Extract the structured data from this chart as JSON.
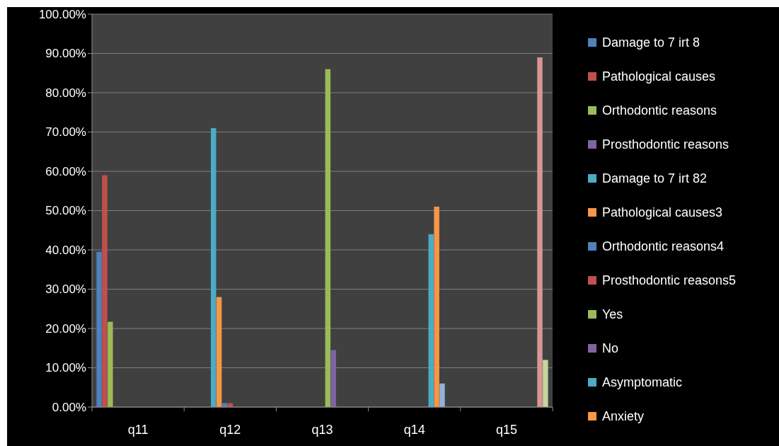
{
  "chart_data": {
    "type": "bar",
    "categories": [
      "q11",
      "q12",
      "q13",
      "q14",
      "q15"
    ],
    "ylim": [
      0,
      100
    ],
    "yticks": [
      {
        "value": 0,
        "label": "0.00%"
      },
      {
        "value": 10,
        "label": "10.00%"
      },
      {
        "value": 20,
        "label": "20.00%"
      },
      {
        "value": 30,
        "label": "30.00%"
      },
      {
        "value": 40,
        "label": "40.00%"
      },
      {
        "value": 50,
        "label": "50.00%"
      },
      {
        "value": 60,
        "label": "60.00%"
      },
      {
        "value": 70,
        "label": "70.00%"
      },
      {
        "value": 80,
        "label": "80.00%"
      },
      {
        "value": 90,
        "label": "90.00%"
      },
      {
        "value": 100,
        "label": "100.00%"
      }
    ],
    "grid": "y",
    "legend": "right",
    "series": [
      {
        "name": "Damage to 7 irt 8",
        "color": "#4f81bd",
        "values": [
          39.5,
          null,
          null,
          null,
          null
        ]
      },
      {
        "name": "Pathological causes",
        "color": "#c0504d",
        "values": [
          59,
          null,
          null,
          null,
          null
        ]
      },
      {
        "name": "Orthodontic reasons",
        "color": "#9bbb59",
        "values": [
          21.7,
          null,
          null,
          null,
          null
        ]
      },
      {
        "name": "Prosthodontic reasons",
        "color": "#8064a2",
        "values": [
          null,
          null,
          null,
          null,
          null
        ]
      },
      {
        "name": "Damage to 7 irt 82",
        "color": "#4bacc6",
        "values": [
          null,
          71,
          null,
          null,
          null
        ]
      },
      {
        "name": "Pathological causes3",
        "color": "#f79646",
        "values": [
          null,
          28,
          null,
          null,
          null
        ]
      },
      {
        "name": "Orthodontic reasons4",
        "color": "#4f81bd",
        "values": [
          null,
          1,
          null,
          null,
          null
        ]
      },
      {
        "name": "Prosthodontic reasons5",
        "color": "#c0504d",
        "values": [
          null,
          1,
          null,
          null,
          null
        ]
      },
      {
        "name": "Yes",
        "color": "#9bbb59",
        "values": [
          null,
          null,
          86,
          null,
          null
        ]
      },
      {
        "name": "No",
        "color": "#8064a2",
        "values": [
          null,
          null,
          14.5,
          null,
          null
        ]
      },
      {
        "name": "Asymptomatic",
        "color": "#4bacc6",
        "values": [
          null,
          null,
          null,
          44,
          null
        ]
      },
      {
        "name": "Anxiety",
        "color": "#f79646",
        "values": [
          null,
          null,
          null,
          51,
          null
        ]
      },
      {
        "color": "#95b3d7",
        "values": [
          null,
          null,
          null,
          6,
          null
        ]
      },
      {
        "color": "#d99694",
        "values": [
          null,
          null,
          null,
          null,
          89
        ]
      },
      {
        "color": "#c3d69b",
        "values": [
          null,
          null,
          null,
          null,
          12
        ]
      }
    ]
  }
}
